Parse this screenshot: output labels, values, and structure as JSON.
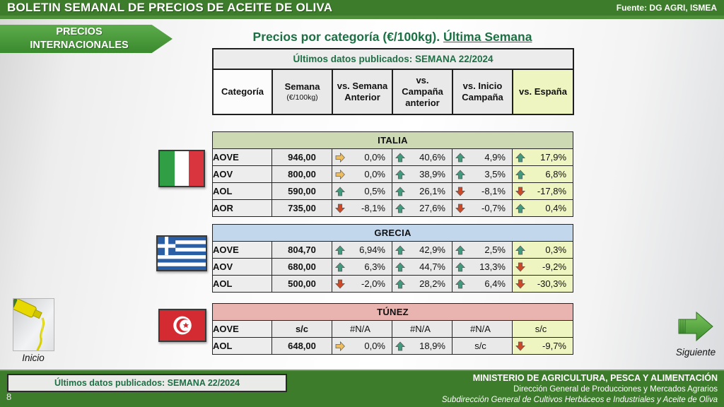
{
  "header": {
    "title": "BOLETIN SEMANAL DE PRECIOS DE ACEITE DE OLIVA",
    "source": "Fuente: DG AGRI, ISMEA"
  },
  "nav": {
    "section_label": "PRECIOS INTERNACIONALES",
    "inicio_label": "Inicio",
    "siguiente_label": "Siguiente"
  },
  "main": {
    "title_prefix": "Precios por categoría (€/100kg). ",
    "title_underlined": "Última Semana",
    "published_banner": "Últimos datos publicados: SEMANA 22/2024",
    "cols": [
      {
        "label": "Categoría",
        "sub": ""
      },
      {
        "label": "Semana",
        "sub": "(€/100kg)"
      },
      {
        "label": "vs. Semana Anterior",
        "sub": ""
      },
      {
        "label": "vs. Campaña anterior",
        "sub": ""
      },
      {
        "label": "vs. Inicio Campaña",
        "sub": ""
      },
      {
        "label": "vs. España",
        "sub": ""
      }
    ]
  },
  "countries": [
    {
      "name": "ITALIA",
      "flag": "italy-flag",
      "header_color": "#ccd9b3",
      "rows": [
        {
          "category": "AOVE",
          "price": "946,00",
          "cells": [
            {
              "arrow": "right",
              "value": "0,0%"
            },
            {
              "arrow": "up",
              "value": "40,6%"
            },
            {
              "arrow": "up",
              "value": "4,9%"
            },
            {
              "arrow": "up",
              "value": "17,9%"
            }
          ]
        },
        {
          "category": "AOV",
          "price": "800,00",
          "cells": [
            {
              "arrow": "right",
              "value": "0,0%"
            },
            {
              "arrow": "up",
              "value": "38,9%"
            },
            {
              "arrow": "up",
              "value": "3,5%"
            },
            {
              "arrow": "up",
              "value": "6,8%"
            }
          ]
        },
        {
          "category": "AOL",
          "price": "590,00",
          "cells": [
            {
              "arrow": "up",
              "value": "0,5%"
            },
            {
              "arrow": "up",
              "value": "26,1%"
            },
            {
              "arrow": "down",
              "value": "-8,1%"
            },
            {
              "arrow": "down",
              "value": "-17,8%"
            }
          ]
        },
        {
          "category": "AOR",
          "price": "735,00",
          "cells": [
            {
              "arrow": "down",
              "value": "-8,1%"
            },
            {
              "arrow": "up",
              "value": "27,6%"
            },
            {
              "arrow": "down",
              "value": "-0,7%"
            },
            {
              "arrow": "up",
              "value": "0,4%"
            }
          ]
        }
      ]
    },
    {
      "name": "GRECIA",
      "flag": "greece-flag",
      "header_color": "#c3d7ec",
      "rows": [
        {
          "category": "AOVE",
          "price": "804,70",
          "cells": [
            {
              "arrow": "up",
              "value": "6,94%"
            },
            {
              "arrow": "up",
              "value": "42,9%"
            },
            {
              "arrow": "up",
              "value": "2,5%"
            },
            {
              "arrow": "up",
              "value": "0,3%"
            }
          ]
        },
        {
          "category": "AOV",
          "price": "680,00",
          "cells": [
            {
              "arrow": "up",
              "value": "6,3%"
            },
            {
              "arrow": "up",
              "value": "44,7%"
            },
            {
              "arrow": "up",
              "value": "13,3%"
            },
            {
              "arrow": "down",
              "value": "-9,2%"
            }
          ]
        },
        {
          "category": "AOL",
          "price": "500,00",
          "cells": [
            {
              "arrow": "down",
              "value": "-2,0%"
            },
            {
              "arrow": "up",
              "value": "28,2%"
            },
            {
              "arrow": "up",
              "value": "6,4%"
            },
            {
              "arrow": "down",
              "value": "-30,3%"
            }
          ]
        }
      ]
    },
    {
      "name": "TÚNEZ",
      "flag": "tunisia-flag",
      "header_color": "#e9b3af",
      "rows": [
        {
          "category": "AOVE",
          "price": "s/c",
          "cells": [
            {
              "arrow": "none",
              "value": "#N/A"
            },
            {
              "arrow": "none",
              "value": "#N/A"
            },
            {
              "arrow": "none",
              "value": "#N/A"
            },
            {
              "arrow": "none",
              "value": "s/c"
            }
          ]
        },
        {
          "category": "AOL",
          "price": "648,00",
          "cells": [
            {
              "arrow": "right",
              "value": "0,0%"
            },
            {
              "arrow": "up",
              "value": "18,9%"
            },
            {
              "arrow": "none",
              "value": "s/c"
            },
            {
              "arrow": "down",
              "value": "-9,7%"
            }
          ]
        }
      ]
    }
  ],
  "footer": {
    "published": "Últimos datos publicados: SEMANA 22/2024",
    "page_number": "8",
    "ministry": "MINISTERIO DE AGRICULTURA, PESCA Y ALIMENTACIÓN",
    "direction": "Dirección General de Producciones y Mercados Agrarios",
    "subdirection": "Subdirección General de Cultivos Herbáceos e Industriales y Aceite de Oliva"
  },
  "colors": {
    "band_green": "#3d7c2b",
    "title_green": "#1d7044",
    "espana_column": "#eff5c1",
    "cell_gray": "#e9e9e9",
    "arrow_up": "#43997d",
    "arrow_down": "#cd4a28",
    "arrow_right": "#edbd5e"
  }
}
